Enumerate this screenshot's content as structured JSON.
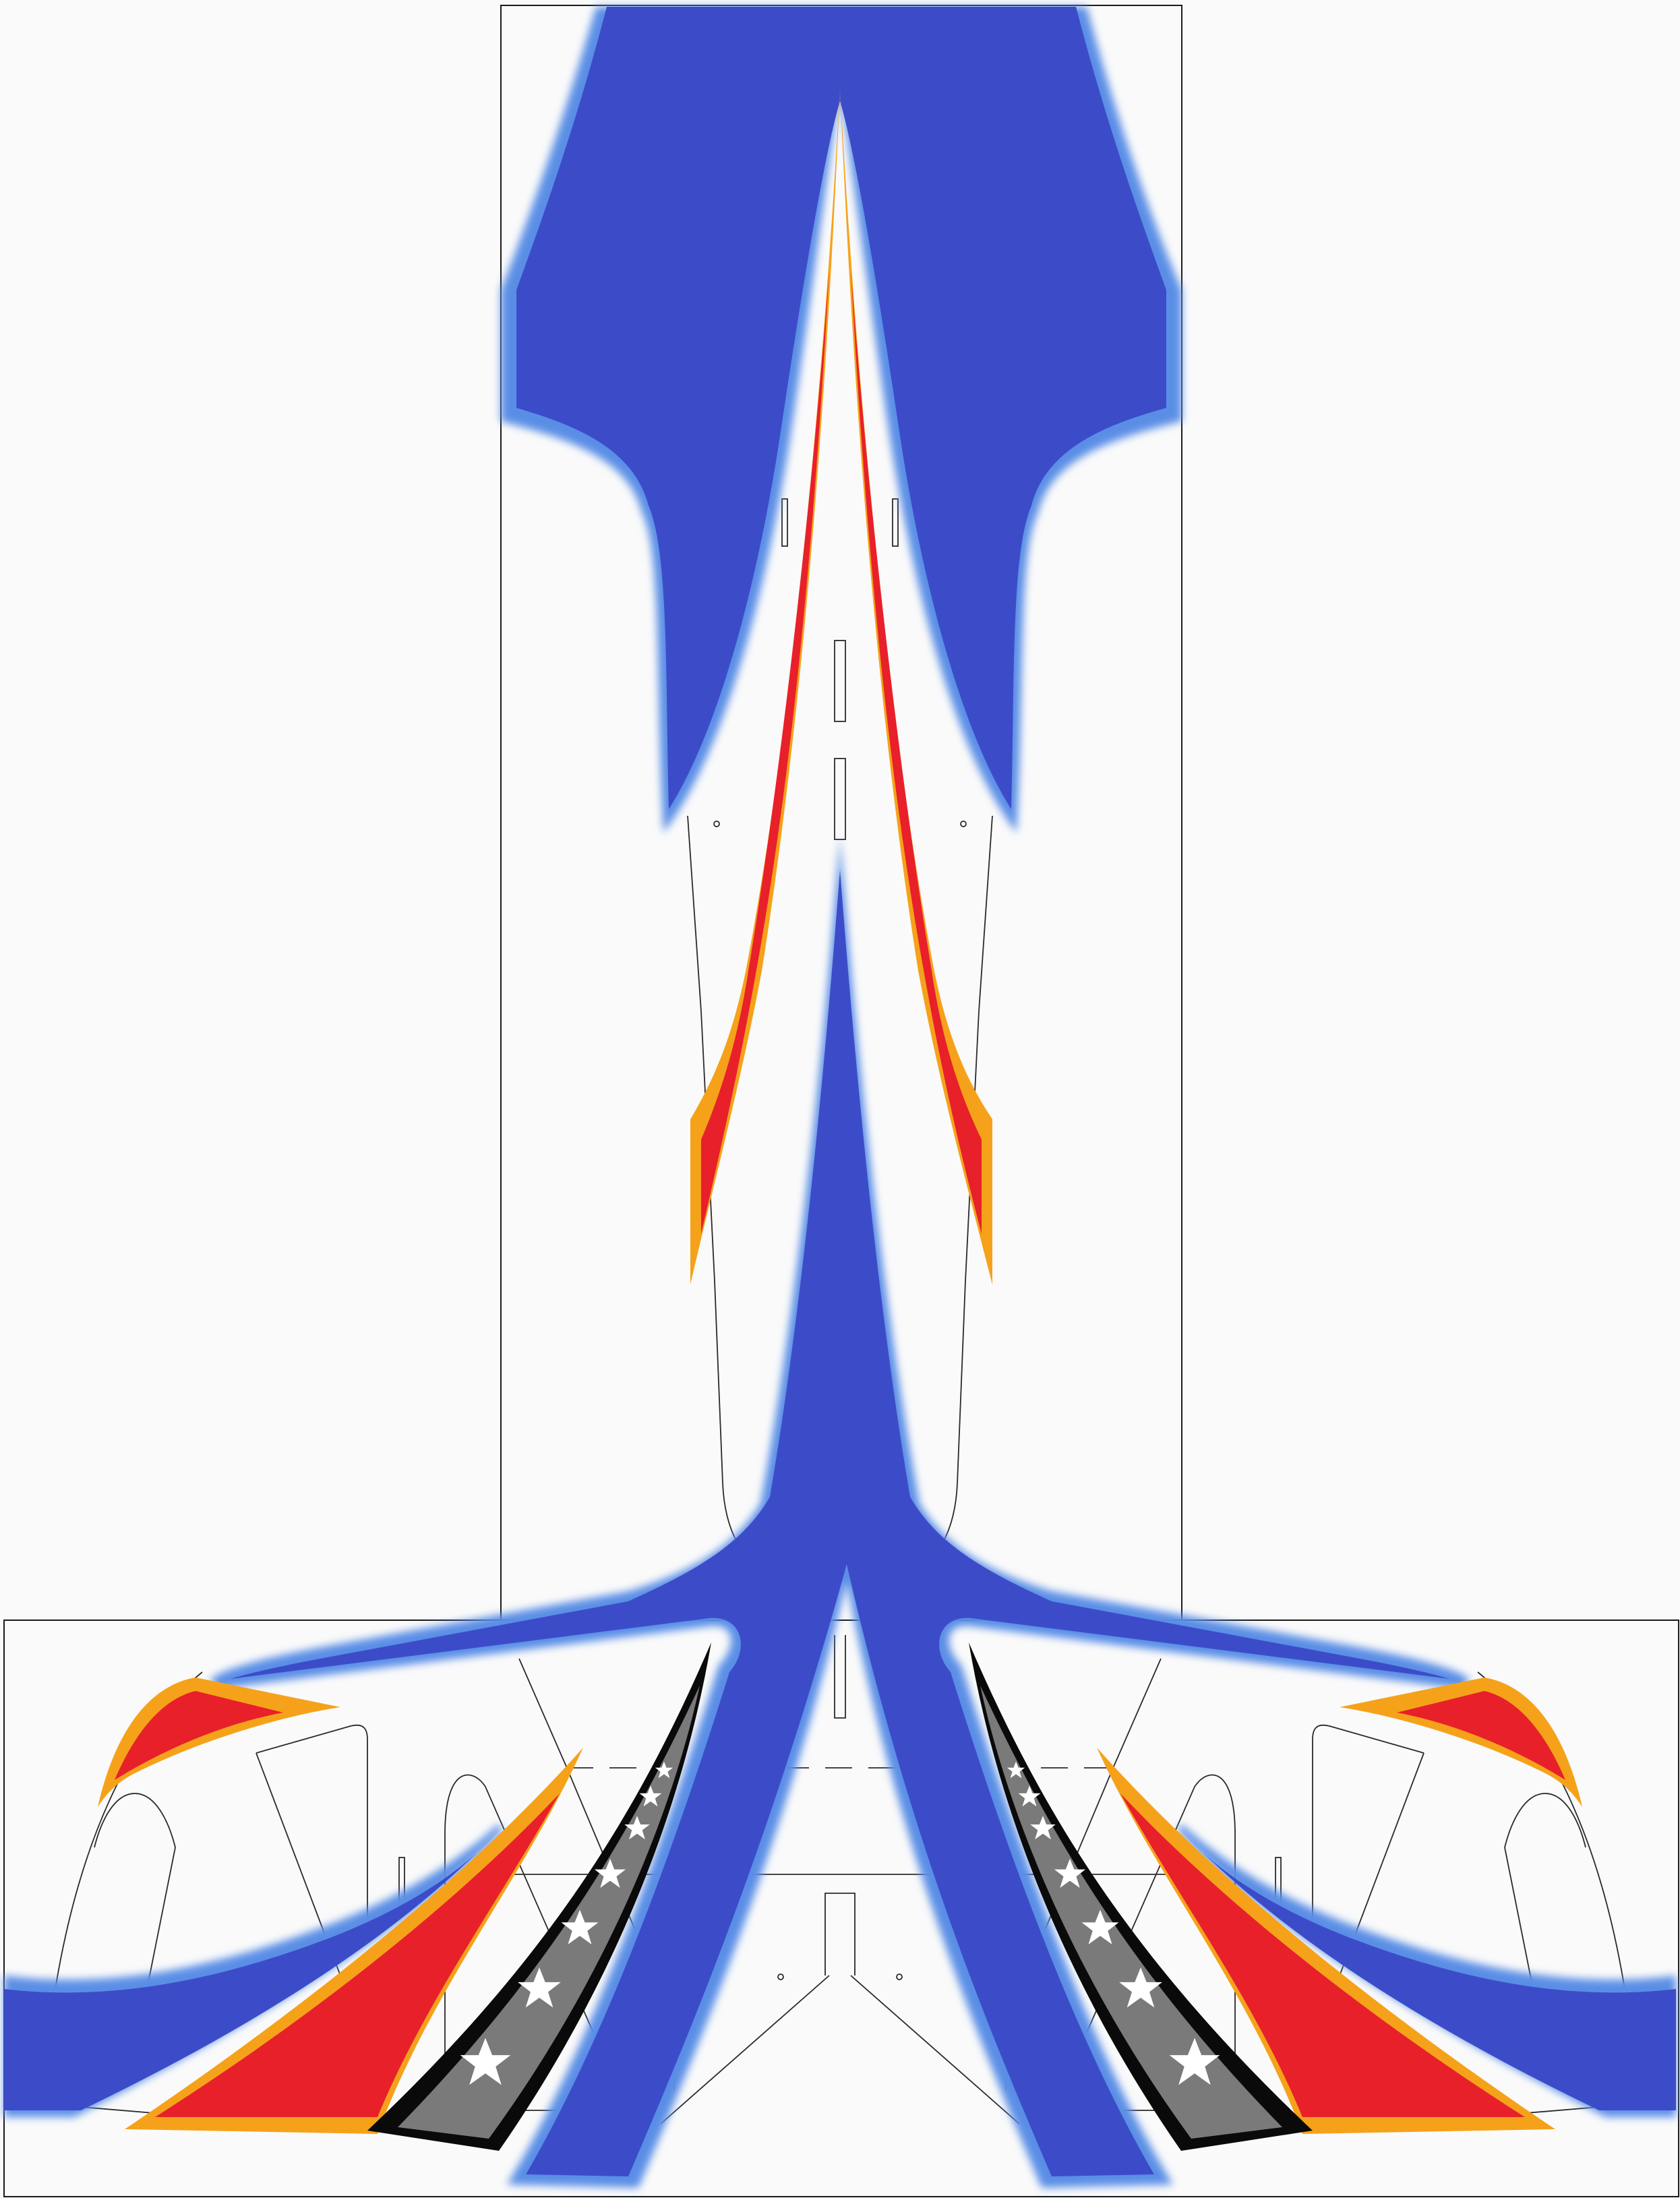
{
  "artwork": {
    "type": "rc-airplane-livery-template",
    "palette": {
      "page_background": "#fafafa",
      "blue_core": "#3c4cc8",
      "blue_edge": "#5a8ee6",
      "flame_core": "#e8202a",
      "flame_mid": "#f06a1a",
      "flame_edge": "#f5a21a",
      "stripe_gray": "#7a7a7a",
      "stripe_black": "#0a0a0a",
      "star_white": "#ffffff",
      "outline": "#1a1a1a"
    },
    "icons": [
      "star-icon"
    ],
    "panels": [
      "fuselage-panel",
      "wing-panel"
    ]
  }
}
